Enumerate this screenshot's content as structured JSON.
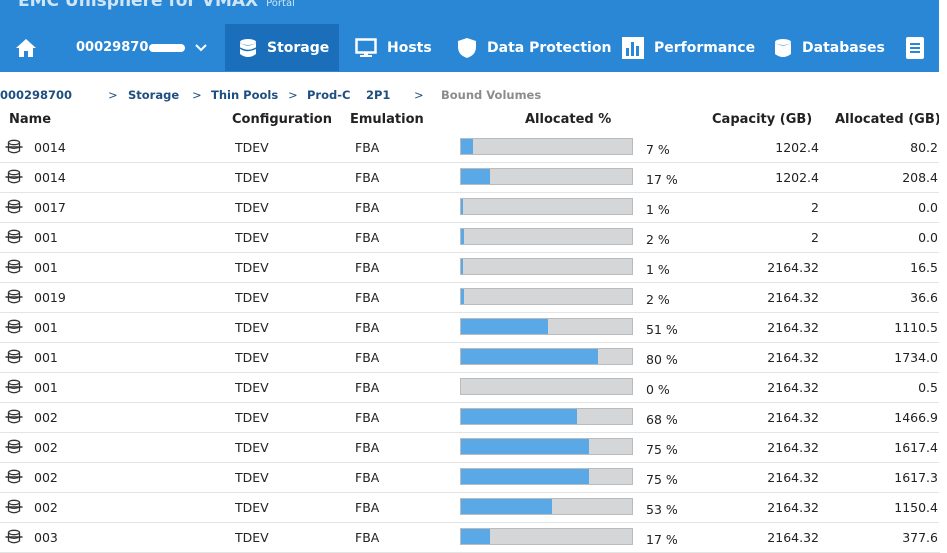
{
  "app": {
    "title": "EMC Unisphere for VMAX",
    "subtitle": "Portal"
  },
  "nav": {
    "array_id": "00029870",
    "items": [
      {
        "label": "Storage",
        "icon": "database-icon",
        "active": true
      },
      {
        "label": "Hosts",
        "icon": "monitor-icon",
        "active": false
      },
      {
        "label": "Data Protection",
        "icon": "shield-icon",
        "active": false
      },
      {
        "label": "Performance",
        "icon": "bar-chart-icon",
        "active": false
      },
      {
        "label": "Databases",
        "icon": "database-icon",
        "active": false
      }
    ]
  },
  "breadcrumb": {
    "array": "000298700",
    "storage": "Storage",
    "thin_pools": "Thin Pools",
    "pool": "Prod-C   2P1",
    "current": "Bound Volumes",
    "separator": ">"
  },
  "table": {
    "headers": {
      "name": "Name",
      "configuration": "Configuration",
      "emulation": "Emulation",
      "allocated_pct": "Allocated %",
      "capacity": "Capacity (GB)",
      "allocated": "Allocated (GB)"
    },
    "rows": [
      {
        "name": "0014",
        "config": "TDEV",
        "emulation": "FBA",
        "pct": 7,
        "pct_label": "7 %",
        "capacity": "1202.4",
        "allocated": "80.2"
      },
      {
        "name": "0014",
        "config": "TDEV",
        "emulation": "FBA",
        "pct": 17,
        "pct_label": "17 %",
        "capacity": "1202.4",
        "allocated": "208.4"
      },
      {
        "name": "0017",
        "config": "TDEV",
        "emulation": "FBA",
        "pct": 1,
        "pct_label": "1 %",
        "capacity": "2",
        "allocated": "0.0"
      },
      {
        "name": "001",
        "config": "TDEV",
        "emulation": "FBA",
        "pct": 2,
        "pct_label": "2 %",
        "capacity": "2",
        "allocated": "0.0"
      },
      {
        "name": "001",
        "config": "TDEV",
        "emulation": "FBA",
        "pct": 1,
        "pct_label": "1 %",
        "capacity": "2164.32",
        "allocated": "16.5"
      },
      {
        "name": "0019",
        "config": "TDEV",
        "emulation": "FBA",
        "pct": 2,
        "pct_label": "2 %",
        "capacity": "2164.32",
        "allocated": "36.6"
      },
      {
        "name": "001",
        "config": "TDEV",
        "emulation": "FBA",
        "pct": 51,
        "pct_label": "51 %",
        "capacity": "2164.32",
        "allocated": "1110.5"
      },
      {
        "name": "001",
        "config": "TDEV",
        "emulation": "FBA",
        "pct": 80,
        "pct_label": "80 %",
        "capacity": "2164.32",
        "allocated": "1734.0"
      },
      {
        "name": "001",
        "config": "TDEV",
        "emulation": "FBA",
        "pct": 0,
        "pct_label": "0 %",
        "capacity": "2164.32",
        "allocated": "0.5"
      },
      {
        "name": "002",
        "config": "TDEV",
        "emulation": "FBA",
        "pct": 68,
        "pct_label": "68 %",
        "capacity": "2164.32",
        "allocated": "1466.9"
      },
      {
        "name": "002",
        "config": "TDEV",
        "emulation": "FBA",
        "pct": 75,
        "pct_label": "75 %",
        "capacity": "2164.32",
        "allocated": "1617.4"
      },
      {
        "name": "002",
        "config": "TDEV",
        "emulation": "FBA",
        "pct": 75,
        "pct_label": "75 %",
        "capacity": "2164.32",
        "allocated": "1617.3"
      },
      {
        "name": "002",
        "config": "TDEV",
        "emulation": "FBA",
        "pct": 53,
        "pct_label": "53 %",
        "capacity": "2164.32",
        "allocated": "1150.4"
      },
      {
        "name": "003",
        "config": "TDEV",
        "emulation": "FBA",
        "pct": 17,
        "pct_label": "17 %",
        "capacity": "2164.32",
        "allocated": "377.6"
      }
    ]
  },
  "colors": {
    "header_bg": "#2a87d6",
    "active_tab": "#1b6fba",
    "bar_fill": "#5aa8e6",
    "bar_track": "#d4d6d8",
    "breadcrumb_link": "#1f4f80"
  }
}
